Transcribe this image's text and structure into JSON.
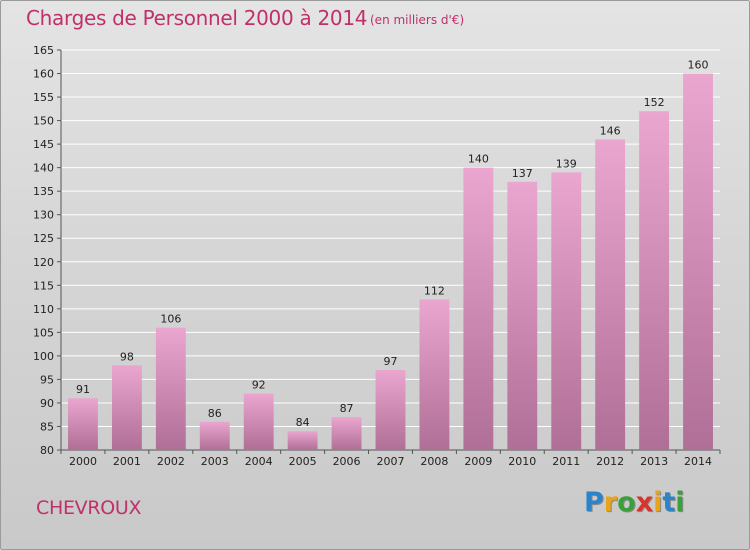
{
  "header": {
    "title": "Charges de Personnel 2000 à 2014",
    "subtitle": "(en milliers d'€)"
  },
  "footer": {
    "city": "CHEVROUX",
    "logo_letters": [
      {
        "ch": "P",
        "color": "#2b83c9"
      },
      {
        "ch": "r",
        "color": "#e8a318"
      },
      {
        "ch": "o",
        "color": "#3aa13a"
      },
      {
        "ch": "x",
        "color": "#d9342b"
      },
      {
        "ch": "i",
        "color": "#e8a318"
      },
      {
        "ch": "t",
        "color": "#2b83c9"
      },
      {
        "ch": "i",
        "color": "#3aa13a"
      }
    ]
  },
  "chart_data": {
    "type": "bar",
    "title": "Charges de Personnel 2000 à 2014",
    "subtitle": "(en milliers d'€)",
    "xlabel": "",
    "ylabel": "",
    "categories": [
      "2000",
      "2001",
      "2002",
      "2003",
      "2004",
      "2005",
      "2006",
      "2007",
      "2008",
      "2009",
      "2010",
      "2011",
      "2012",
      "2013",
      "2014"
    ],
    "values": [
      91,
      98,
      106,
      86,
      92,
      84,
      87,
      97,
      112,
      140,
      137,
      139,
      146,
      152,
      160
    ],
    "ylim": [
      80,
      165
    ],
    "yticks": [
      80,
      85,
      90,
      95,
      100,
      105,
      110,
      115,
      120,
      125,
      130,
      135,
      140,
      145,
      150,
      155,
      160,
      165
    ],
    "grid": true,
    "legend": "none",
    "colors": {
      "bar_top": "#eaa6cf",
      "bar_bottom": "#b06f96",
      "grid": "#ffffff",
      "title": "#c0306b"
    }
  }
}
